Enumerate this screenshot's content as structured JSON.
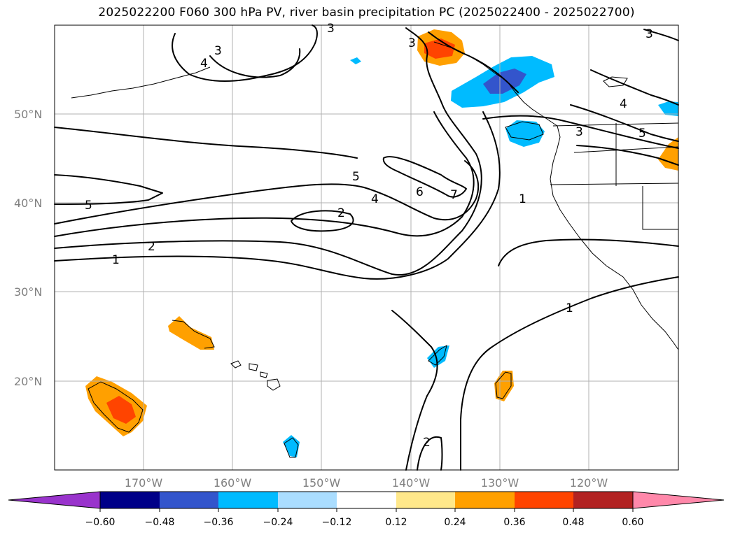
{
  "title": "2025022200 F060 300 hPa PV, river basin precipitation PC (2025022400 - 2025022700)",
  "lat_labels": [
    "50°N",
    "40°N",
    "30°N",
    "20°N"
  ],
  "lon_labels": [
    "170°W",
    "160°W",
    "150°W",
    "140°W",
    "130°W",
    "120°W"
  ],
  "colorbar": {
    "ticks": [
      "−0.60",
      "−0.48",
      "−0.36",
      "−0.24",
      "−0.12",
      "0.12",
      "0.24",
      "0.36",
      "0.48",
      "0.60"
    ],
    "colors": [
      "#9933cc",
      "#000088",
      "#3355cc",
      "#00bbff",
      "#aaddff",
      "#ffffff",
      "#ffe88a",
      "#ffa000",
      "#ff4400",
      "#b22222",
      "#ff88aa"
    ]
  },
  "contour_labels": [
    "3",
    "3",
    "4",
    "3",
    "3",
    "4",
    "3",
    "5",
    "5",
    "6",
    "7",
    "4",
    "2",
    "1",
    "5",
    "2",
    "1",
    "1",
    "2"
  ]
}
